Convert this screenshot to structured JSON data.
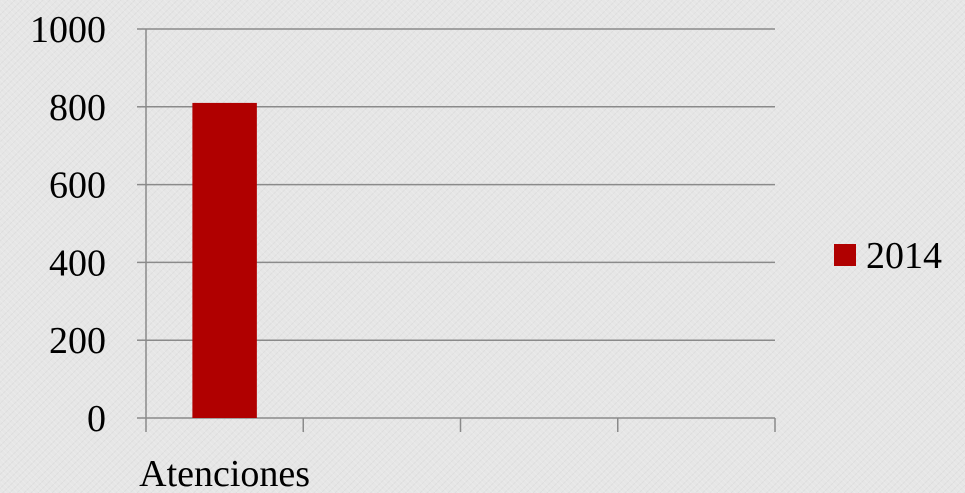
{
  "chart_data": {
    "type": "bar",
    "categories": [
      "Atenciones",
      "",
      "",
      ""
    ],
    "series": [
      {
        "name": "2014",
        "values": [
          810,
          null,
          null,
          null
        ],
        "color": "#b00000"
      }
    ],
    "yticks": [
      "0",
      "200",
      "400",
      "600",
      "800",
      "1000"
    ],
    "ylim": [
      0,
      1000
    ],
    "grid": true,
    "legend": "right",
    "title": "",
    "xlabel": "",
    "ylabel": ""
  }
}
